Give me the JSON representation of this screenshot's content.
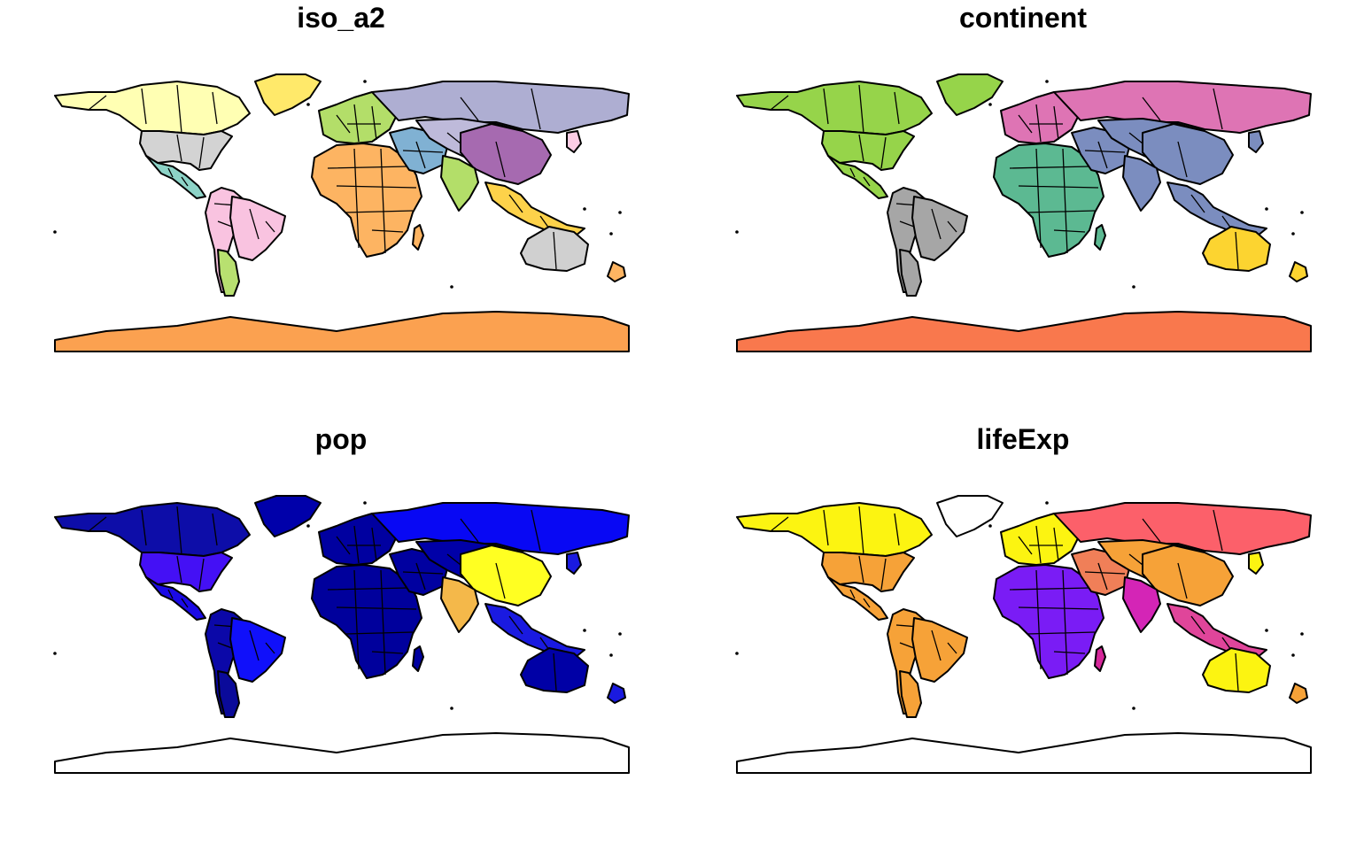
{
  "panels": [
    {
      "title": "iso_a2",
      "fill_mode": "per_country",
      "palette": [
        "#8dd3c7",
        "#ffffb3",
        "#bebada",
        "#fb8072",
        "#80b1d3",
        "#fdb462",
        "#b3de69",
        "#fccde5",
        "#d9d9d9",
        "#bc80bd",
        "#ccebc5",
        "#ffed6f",
        "#a6cee3",
        "#fb9a99"
      ],
      "fills": {
        "northamerica": "#ffffb3",
        "usa": "#d3d3d3",
        "greenland": "#ffe96a",
        "centralamerica": "#8dd3c7",
        "southamerica": "#f9c3e0",
        "brazil": "#f9c3e0",
        "chile": "#b8e070",
        "europe": "#b3de69",
        "russia": "#aeaed2",
        "africa": "#fdb462",
        "middleeast": "#80b1d3",
        "asia": "#bebada",
        "china": "#a66ab0",
        "india": "#b3de69",
        "seasia": "#fdd24a",
        "australia": "#d0d0d0",
        "antarctica": "#fba150",
        "newzealand": "#fdb462",
        "madagascar": "#fdb462",
        "japan": "#fccde5"
      }
    },
    {
      "title": "continent",
      "fill_mode": "per_region",
      "fills": {
        "northamerica": "#96d44a",
        "usa": "#96d44a",
        "greenland": "#96d44a",
        "centralamerica": "#96d44a",
        "southamerica": "#a6a6a6",
        "brazil": "#a6a6a6",
        "chile": "#a6a6a6",
        "europe": "#de74b4",
        "russia": "#de74b4",
        "africa": "#5cb992",
        "middleeast": "#7b8dbf",
        "asia": "#7b8dbf",
        "china": "#7b8dbf",
        "india": "#7b8dbf",
        "seasia": "#7b8dbf",
        "australia": "#fcd430",
        "antarctica": "#f9784d",
        "newzealand": "#fcd430",
        "madagascar": "#5cb992",
        "japan": "#7b8dbf"
      }
    },
    {
      "title": "pop",
      "fill_mode": "continuous",
      "fills": {
        "northamerica": "#0d0da8",
        "usa": "#4410f5",
        "greenland": "#0000aa",
        "centralamerica": "#1b0ae6",
        "southamerica": "#0b08a8",
        "brazil": "#1010fa",
        "chile": "#0a0a9a",
        "europe": "#0000a0",
        "russia": "#0808f4",
        "africa": "#00009c",
        "middleeast": "#0000a0",
        "asia": "#0000a8",
        "china": "#ffff22",
        "india": "#f4b84a",
        "seasia": "#1a1ae0",
        "australia": "#0000a6",
        "antarctica": "#ffffff",
        "newzealand": "#1a1ae0",
        "madagascar": "#0000a0",
        "japan": "#1a1ae0"
      }
    },
    {
      "title": "lifeExp",
      "fill_mode": "continuous",
      "fills": {
        "northamerica": "#fcf411",
        "usa": "#f6a238",
        "greenland": "#ffffff",
        "centralamerica": "#f6a238",
        "southamerica": "#f6a238",
        "brazil": "#f6a238",
        "chile": "#f6a238",
        "europe": "#fcf411",
        "russia": "#fc606a",
        "africa": "#7a1cf5",
        "middleeast": "#f07f58",
        "asia": "#f6a238",
        "china": "#f6a238",
        "india": "#d425b6",
        "seasia": "#e0459a",
        "australia": "#fcf411",
        "antarctica": "#ffffff",
        "newzealand": "#f6a238",
        "madagascar": "#d6279a",
        "japan": "#fcf411"
      }
    }
  ]
}
